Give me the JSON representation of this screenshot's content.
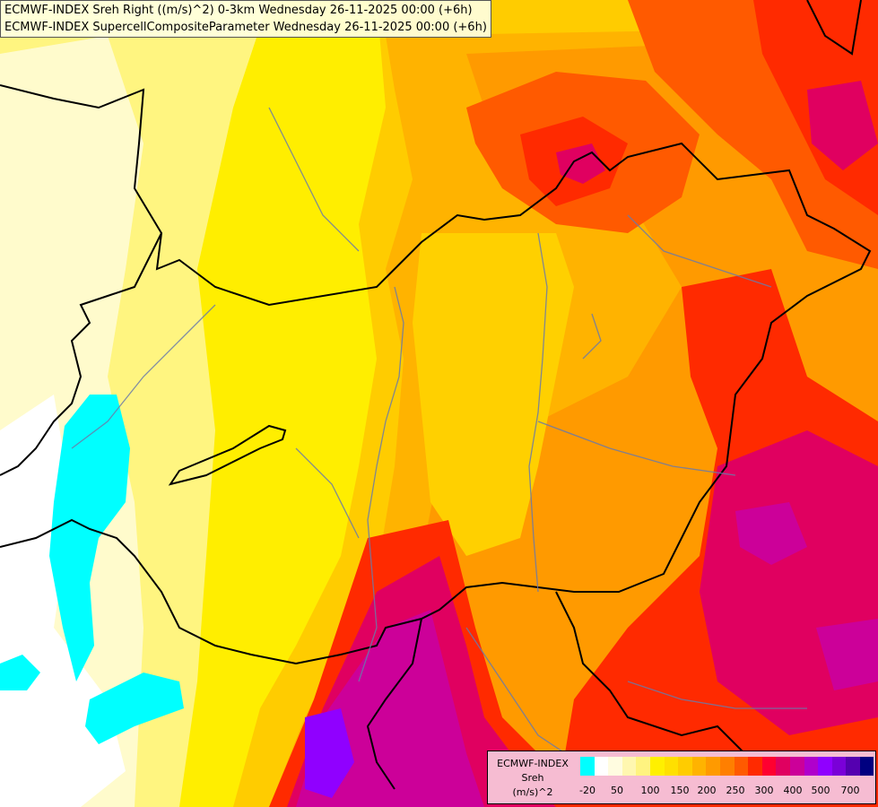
{
  "header": {
    "line1": "ECMWF-INDEX Sreh Right ((m/s)^2) 0-3km Wednesday 26-11-2025 00:00 (+6h)",
    "line2": "ECMWF-INDEX SupercellCompositeParameter Wednesday 26-11-2025 00:00 (+6h)"
  },
  "legend": {
    "title1": "ECMWF-INDEX",
    "title2": "Sreh",
    "unit": "(m/s)^2",
    "colors": [
      "#00ffff",
      "#ffffff",
      "#fffce0",
      "#fff7b0",
      "#fff380",
      "#fff000",
      "#ffe000",
      "#ffcc00",
      "#ffb300",
      "#ff9a00",
      "#ff7f00",
      "#ff5a00",
      "#ff2a00",
      "#ff0030",
      "#e00060",
      "#cc0099",
      "#b000cc",
      "#9000ff",
      "#7a00d8",
      "#5500b0",
      "#000080"
    ],
    "ticks": [
      "-20",
      "50",
      "100",
      "150",
      "200",
      "250",
      "300",
      "400",
      "500",
      "700"
    ]
  },
  "scale": {
    "ticks": [
      -20,
      50,
      100,
      150,
      200,
      250,
      300,
      400,
      500,
      700
    ]
  }
}
